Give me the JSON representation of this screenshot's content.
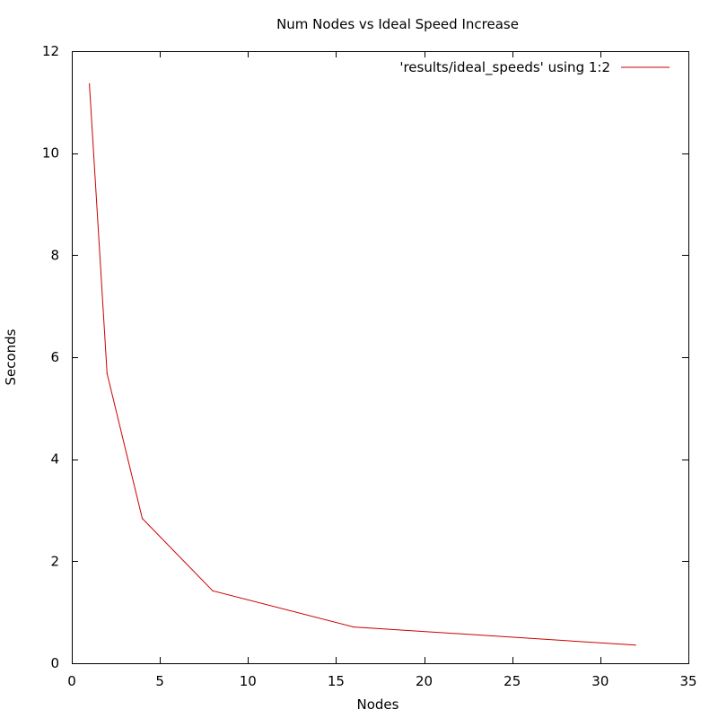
{
  "chart_data": {
    "type": "line",
    "title": "Num Nodes vs Ideal Speed Increase",
    "xlabel": "Nodes",
    "ylabel": "Seconds",
    "xlim": [
      0,
      35
    ],
    "ylim": [
      0,
      12
    ],
    "xticks": [
      0,
      5,
      10,
      15,
      20,
      25,
      30,
      35
    ],
    "yticks": [
      0,
      2,
      4,
      6,
      8,
      10,
      12
    ],
    "grid": false,
    "legend_position": "top-right",
    "series": [
      {
        "name": "'results/ideal_speeds' using 1:2",
        "color": "#cc0000",
        "x": [
          1,
          2,
          4,
          8,
          16,
          32
        ],
        "y": [
          11.36,
          5.68,
          2.84,
          1.42,
          0.71,
          0.355
        ]
      }
    ]
  }
}
